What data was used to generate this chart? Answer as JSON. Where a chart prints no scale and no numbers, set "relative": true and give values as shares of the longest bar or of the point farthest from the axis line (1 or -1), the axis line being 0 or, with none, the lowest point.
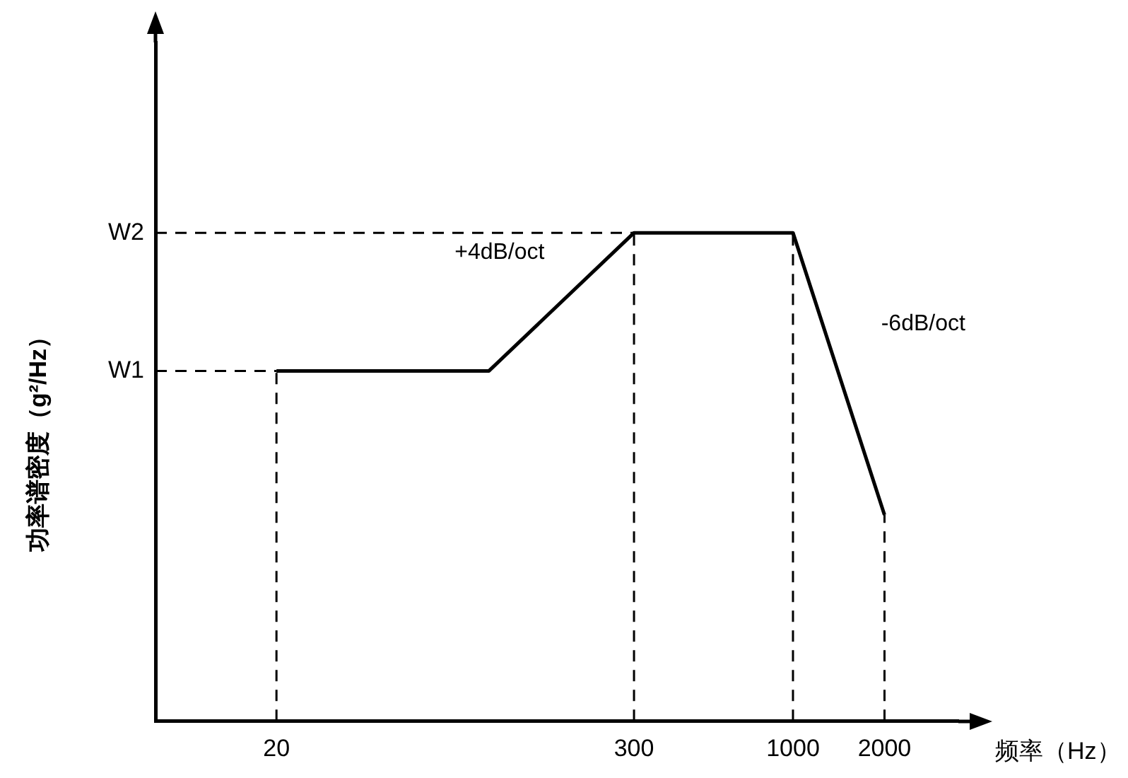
{
  "chart_data": {
    "type": "line",
    "relative": true,
    "log": "x",
    "xlabel": "频率（Hz）",
    "ylabel": "功率谱密度（g²/Hz）",
    "x": [
      20,
      100,
      300,
      1000,
      2000
    ],
    "xlim": [
      8,
      3500
    ],
    "xticks": [
      20,
      300,
      1000,
      2000
    ],
    "series": [
      {
        "color": "#000000",
        "values": [
          0.717,
          0.717,
          1,
          1,
          0.422
        ]
      }
    ],
    "marker": "none",
    "line_style": "solid",
    "legend": false,
    "ref_lines": [
      {
        "axis": "y",
        "value": 0.717,
        "label": "W1",
        "line_style": "dashed"
      },
      {
        "axis": "y",
        "value": 1,
        "label": "W2",
        "line_style": "dashed"
      },
      {
        "axis": "x",
        "value": 20,
        "line_style": "dashed"
      },
      {
        "axis": "x",
        "value": 300,
        "line_style": "dashed"
      },
      {
        "axis": "x",
        "value": 1000,
        "line_style": "dashed"
      },
      {
        "axis": "x",
        "value": 2000,
        "line_style": "dashed"
      }
    ],
    "annotations": [
      "+4dB/oct",
      "-6dB/oct"
    ]
  }
}
